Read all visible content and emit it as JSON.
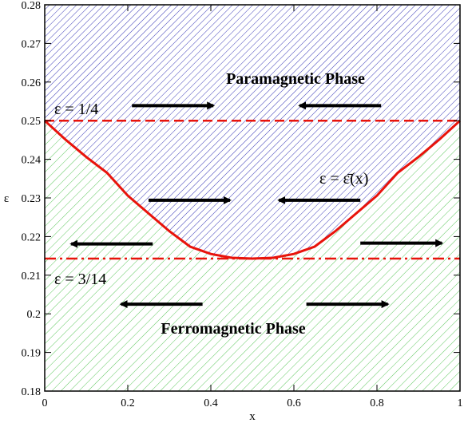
{
  "chart_data": {
    "type": "area",
    "title": "",
    "xlabel": "x",
    "ylabel": "ε",
    "xlim": [
      0,
      1
    ],
    "ylim": [
      0.18,
      0.28
    ],
    "x_ticks": [
      "0",
      "0.2",
      "0.4",
      "0.6",
      "0.8",
      "1"
    ],
    "y_ticks": [
      "0.18",
      "0.19",
      "0.2",
      "0.21",
      "0.22",
      "0.23",
      "0.24",
      "0.25",
      "0.26",
      "0.27",
      "0.28"
    ],
    "grid": false,
    "regions": [
      {
        "label": "Paramagnetic Phase",
        "color": "#3a3ab8",
        "hatch": "diagonal-dense"
      },
      {
        "label": "Ferromagnetic Phase",
        "color": "#5ec85e",
        "hatch": "diagonal"
      }
    ],
    "critical_curve": {
      "label": "ε = ε̄(x)",
      "color": "#e8130b",
      "x": [
        0,
        0.05,
        0.1,
        0.15,
        0.2,
        0.25,
        0.3,
        0.35,
        0.4,
        0.45,
        0.5,
        0.55,
        0.6,
        0.65,
        0.7,
        0.75,
        0.8,
        0.85,
        0.9,
        0.95,
        1
      ],
      "y": [
        0.25,
        0.2451,
        0.2406,
        0.2365,
        0.2306,
        0.226,
        0.2214,
        0.2174,
        0.2155,
        0.2145,
        0.2143,
        0.2145,
        0.2155,
        0.2174,
        0.2214,
        0.226,
        0.2306,
        0.2365,
        0.2406,
        0.2451,
        0.25
      ]
    },
    "reference_lines": [
      {
        "label": "ε = 1/4",
        "y": 0.25,
        "style": "dashed",
        "color": "#e8130b"
      },
      {
        "label": "ε = 3/14",
        "y": 0.2143,
        "style": "dash-dot",
        "color": "#e8130b"
      }
    ],
    "arrows": [
      {
        "x_from": 0.21,
        "x_to": 0.41,
        "y": 0.2539
      },
      {
        "x_from": 0.81,
        "x_to": 0.61,
        "y": 0.2539
      },
      {
        "x_from": 0.25,
        "x_to": 0.45,
        "y": 0.2294
      },
      {
        "x_from": 0.76,
        "x_to": 0.56,
        "y": 0.2294
      },
      {
        "x_from": 0.26,
        "x_to": 0.06,
        "y": 0.2181
      },
      {
        "x_from": 0.76,
        "x_to": 0.96,
        "y": 0.2183
      },
      {
        "x_from": 0.38,
        "x_to": 0.18,
        "y": 0.2025
      },
      {
        "x_from": 0.63,
        "x_to": 0.83,
        "y": 0.2025
      }
    ]
  }
}
